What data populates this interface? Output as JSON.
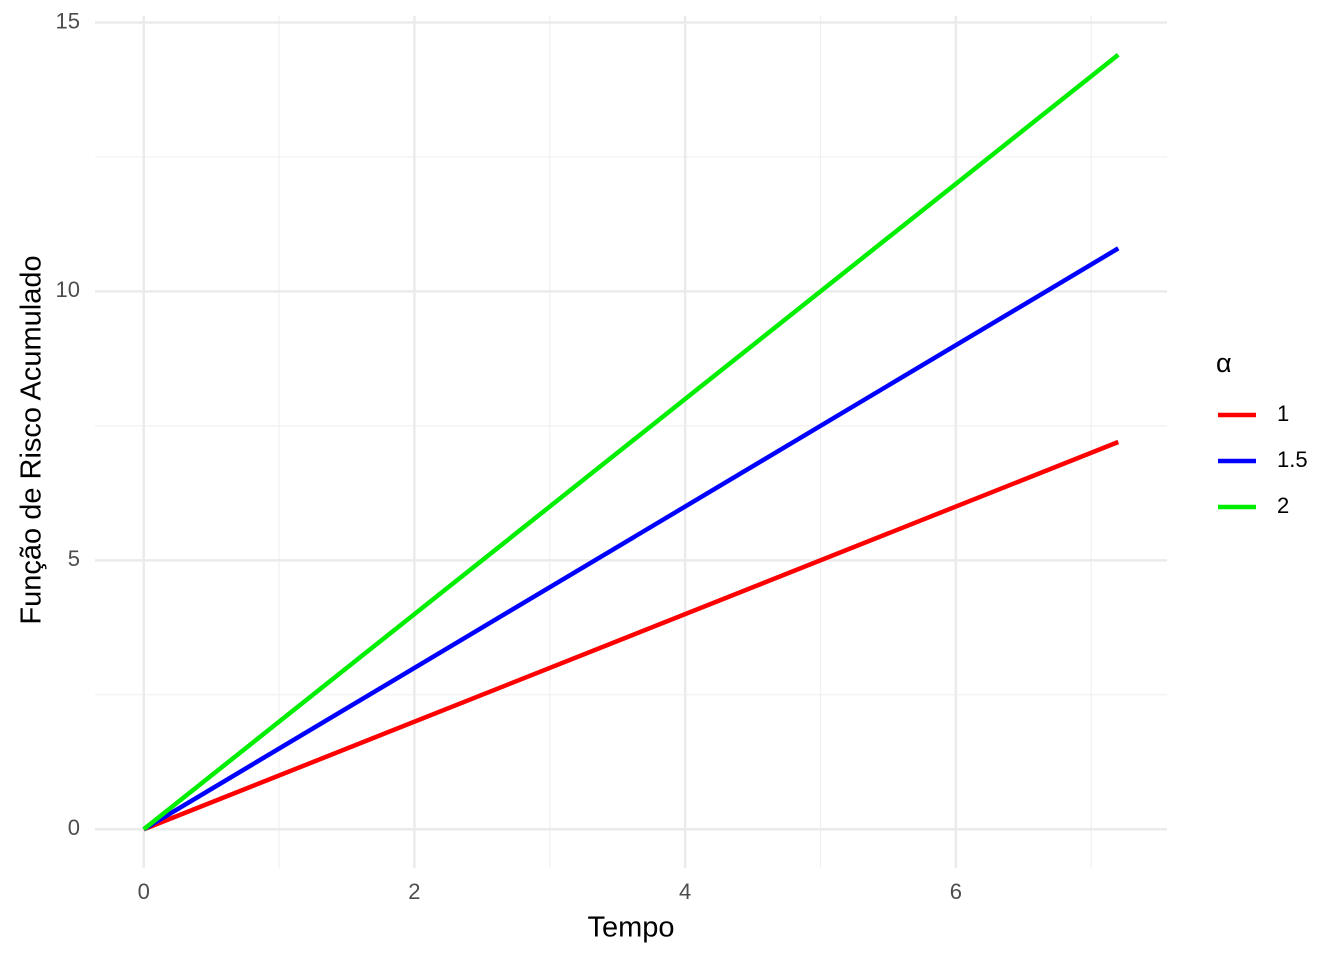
{
  "chart_data": {
    "type": "line",
    "x_label": "Tempo",
    "y_label": "Função de Risco Acumulado",
    "x": [
      0,
      7.2
    ],
    "series": [
      {
        "name": "1",
        "color": "#ff0000",
        "values": [
          0,
          7.2
        ]
      },
      {
        "name": "1.5",
        "color": "#0000ff",
        "values": [
          0,
          10.8
        ]
      },
      {
        "name": "2",
        "color": "#00ee00",
        "values": [
          0,
          14.4
        ]
      }
    ],
    "legend_title": "α",
    "legend": "right",
    "xlim": [
      -0.36,
      7.56
    ],
    "xticks": [
      0,
      2,
      4,
      6
    ],
    "xminor": [
      1,
      3,
      5,
      7
    ],
    "ylim": [
      -0.72,
      15.12
    ],
    "yticks": [
      0,
      5,
      10,
      15
    ],
    "yminor": [
      2.5,
      7.5,
      12.5
    ],
    "grid": true
  }
}
